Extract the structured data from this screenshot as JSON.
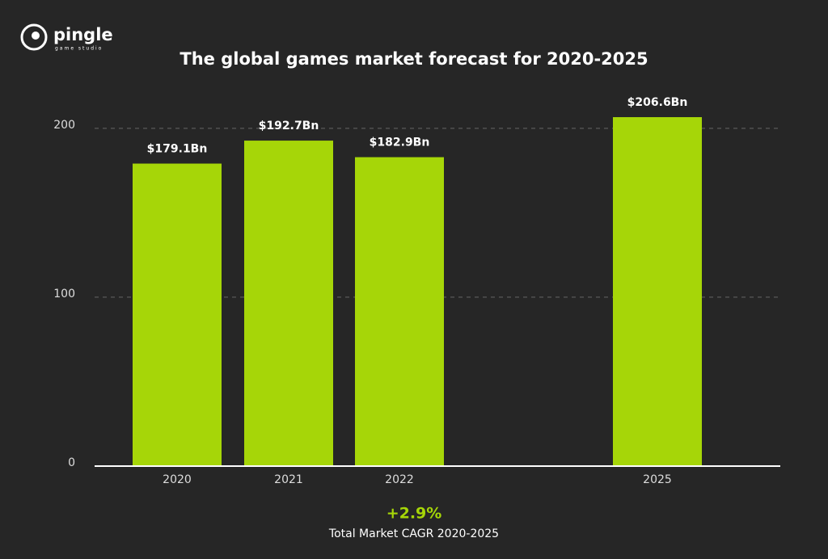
{
  "brand": {
    "name": "pingle",
    "tagline": "game studio"
  },
  "chart_data": {
    "type": "bar",
    "title": "The global games market forecast for 2020-2025",
    "categories": [
      "2020",
      "2021",
      "2022",
      "2025"
    ],
    "values": [
      179.1,
      192.7,
      182.9,
      206.6
    ],
    "value_labels": [
      "$179.1Bn",
      "$192.7Bn",
      "$182.9Bn",
      "$206.6Bn"
    ],
    "color": "#a6d608",
    "ylim": [
      0,
      220
    ],
    "yticks": [
      0,
      100,
      200
    ],
    "grid": true,
    "annotation": "+2.9%",
    "annotation_caption": "Total Market CAGR 2020-2025"
  }
}
